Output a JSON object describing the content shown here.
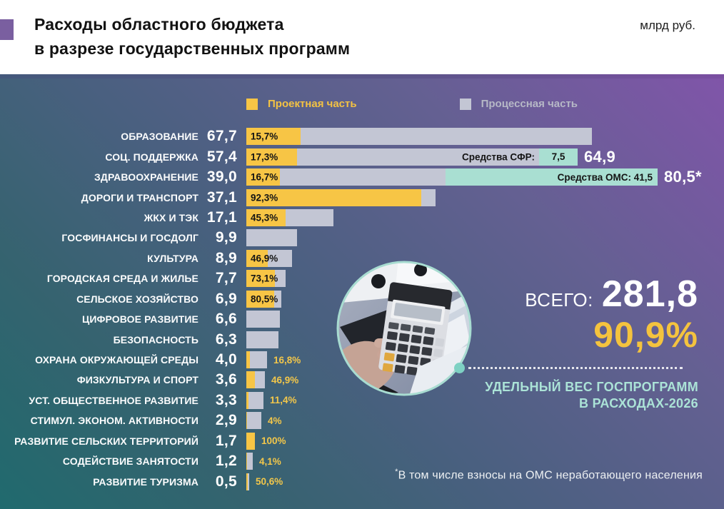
{
  "header": {
    "title_line1": "Расходы областного бюджета",
    "title_line2": "в разрезе государственных программ",
    "unit_label": "млрд руб."
  },
  "legend": {
    "project": {
      "label": "Проектная часть",
      "color": "#f7c545"
    },
    "process": {
      "label": "Процессная часть",
      "color": "#c3c6d4"
    }
  },
  "chart_data": {
    "type": "bar",
    "orientation": "horizontal",
    "unit": "млрд руб.",
    "title": "Расходы областного бюджета в разрезе государственных программ",
    "legend_entries": [
      "Проектная часть",
      "Процессная часть"
    ],
    "series_note": "Каждая полоса = расходы программы; жёлтый сегмент = проектная часть (%), серый = процессная часть; бирюзовый = внебюджетные средства",
    "rows": [
      {
        "label": "ОБРАЗОВАНИЕ",
        "value_label": "67,7",
        "value": 67.7,
        "project_pct": 15.7,
        "pct_label": "15,7%",
        "pct_pos": "inside",
        "extra": null
      },
      {
        "label": "СОЦ. ПОДДЕРЖКА",
        "value_label": "57,4",
        "value": 57.4,
        "project_pct": 17.3,
        "pct_label": "17,3%",
        "pct_pos": "inside",
        "extra": {
          "pre_label": "Средства СФР:",
          "inner_label": "7,5",
          "value": 7.5,
          "total_label": "64,9"
        }
      },
      {
        "label": "ЗДРАВООХРАНЕНИЕ",
        "value_label": "39,0",
        "value": 39.0,
        "project_pct": 16.7,
        "pct_label": "16,7%",
        "pct_pos": "inside",
        "extra": {
          "pre_label": "",
          "inner_label": "Средства ОМС: 41,5",
          "value": 41.5,
          "total_label": "80,5*"
        }
      },
      {
        "label": "ДОРОГИ И ТРАНСПОРТ",
        "value_label": "37,1",
        "value": 37.1,
        "project_pct": 92.3,
        "pct_label": "92,3%",
        "pct_pos": "inside",
        "extra": null
      },
      {
        "label": "ЖКХ И ТЭК",
        "value_label": "17,1",
        "value": 17.1,
        "project_pct": 45.3,
        "pct_label": "45,3%",
        "pct_pos": "inside",
        "extra": null
      },
      {
        "label": "ГОСФИНАНСЫ И ГОСДОЛГ",
        "value_label": "9,9",
        "value": 9.9,
        "project_pct": null,
        "pct_label": "",
        "pct_pos": null,
        "extra": null
      },
      {
        "label": "КУЛЬТУРА",
        "value_label": "8,9",
        "value": 8.9,
        "project_pct": 46.9,
        "pct_label": "46,9%",
        "pct_pos": "inside",
        "extra": null
      },
      {
        "label": "ГОРОДСКАЯ СРЕДА И ЖИЛЬЕ",
        "value_label": "7,7",
        "value": 7.7,
        "project_pct": 73.1,
        "pct_label": "73,1%",
        "pct_pos": "inside",
        "extra": null
      },
      {
        "label": "СЕЛЬСКОЕ ХОЗЯЙСТВО",
        "value_label": "6,9",
        "value": 6.9,
        "project_pct": 80.5,
        "pct_label": "80,5%",
        "pct_pos": "inside",
        "extra": null
      },
      {
        "label": "ЦИФРОВОЕ РАЗВИТИЕ",
        "value_label": "6,6",
        "value": 6.6,
        "project_pct": null,
        "pct_label": "",
        "pct_pos": null,
        "extra": null
      },
      {
        "label": "БЕЗОПАСНОСТЬ",
        "value_label": "6,3",
        "value": 6.3,
        "project_pct": null,
        "pct_label": "",
        "pct_pos": null,
        "extra": null
      },
      {
        "label": "ОХРАНА ОКРУЖАЮЩЕЙ СРЕДЫ",
        "value_label": "4,0",
        "value": 4.0,
        "project_pct": 16.8,
        "pct_label": "16,8%",
        "pct_pos": "outside",
        "extra": null
      },
      {
        "label": "ФИЗКУЛЬТУРА И СПОРТ",
        "value_label": "3,6",
        "value": 3.6,
        "project_pct": 46.9,
        "pct_label": "46,9%",
        "pct_pos": "outside",
        "extra": null
      },
      {
        "label": "УСТ. ОБЩЕСТВЕННОЕ РАЗВИТИЕ",
        "value_label": "3,3",
        "value": 3.3,
        "project_pct": 11.4,
        "pct_label": "11,4%",
        "pct_pos": "outside",
        "extra": null
      },
      {
        "label": "СТИМУЛ. ЭКОНОМ. АКТИВНОСТИ",
        "value_label": "2,9",
        "value": 2.9,
        "project_pct": 4,
        "pct_label": "4%",
        "pct_pos": "outside",
        "extra": null
      },
      {
        "label": "РАЗВИТИЕ СЕЛЬСКИХ ТЕРРИТОРИЙ",
        "value_label": "1,7",
        "value": 1.7,
        "project_pct": 100,
        "pct_label": "100%",
        "pct_pos": "outside",
        "extra": null
      },
      {
        "label": "СОДЕЙСТВИЕ ЗАНЯТОСТИ",
        "value_label": "1,2",
        "value": 1.2,
        "project_pct": 4.1,
        "pct_label": "4,1%",
        "pct_pos": "outside",
        "extra": null
      },
      {
        "label": "РАЗВИТИЕ ТУРИЗМА",
        "value_label": "0,5",
        "value": 0.5,
        "project_pct": 50.6,
        "pct_label": "50,6%",
        "pct_pos": "outside",
        "extra": null
      }
    ]
  },
  "summary": {
    "total_word": "ВСЕГО:",
    "total_value": "281,8",
    "share_value": "90,9%",
    "caption_line1": "УДЕЛЬНЫЙ ВЕС ГОСПРОГРАММ",
    "caption_line2": "В РАСХОДАХ-2026"
  },
  "footnote": {
    "marker": "*",
    "text": "В том числе взносы на ОМС неработающего населения"
  },
  "colors": {
    "accent_purple": "#7a5fa0",
    "project_yellow": "#f7c545",
    "process_gray": "#c3c6d4",
    "extra_teal": "#a9dfd2",
    "mint_text": "#abe3d7",
    "share_yellow": "#f4c33e",
    "bg_top_right": "#8055a9",
    "bg_bottom_left": "#206a6e"
  }
}
